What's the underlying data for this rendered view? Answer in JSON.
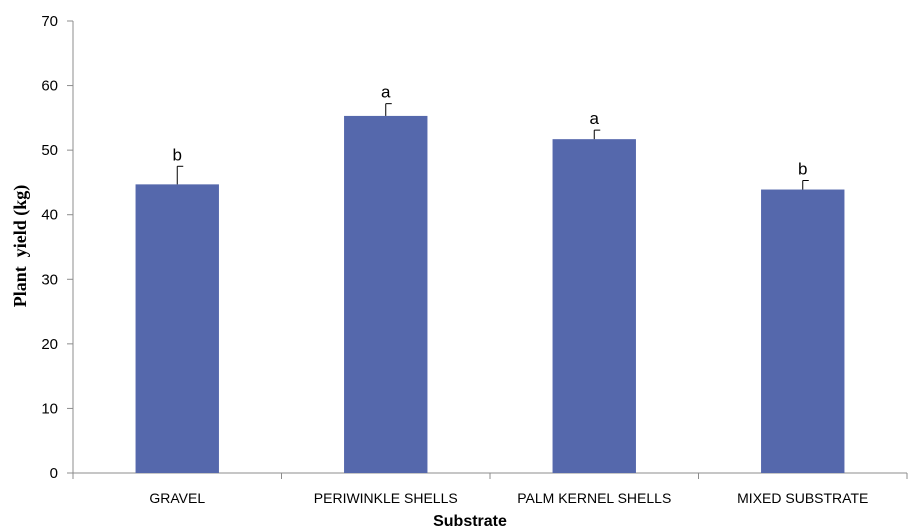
{
  "chart_data": {
    "type": "bar",
    "title": "",
    "xlabel": "Substrate",
    "ylabel": "Plant  yield (kg)",
    "ylim": [
      0,
      70
    ],
    "yticks": [
      0,
      10,
      20,
      30,
      40,
      50,
      60,
      70
    ],
    "grid": false,
    "categories": [
      "GRAVEL",
      "PERIWINKLE SHELLS",
      "PALM KERNEL SHELLS",
      "MIXED SUBSTRATE"
    ],
    "values": [
      44.7,
      55.3,
      51.7,
      43.9
    ],
    "error_upper": [
      2.8,
      1.9,
      1.4,
      1.4
    ],
    "significance_letters": [
      "b",
      "a",
      "a",
      "b"
    ],
    "bar_color": "#5568AC"
  }
}
